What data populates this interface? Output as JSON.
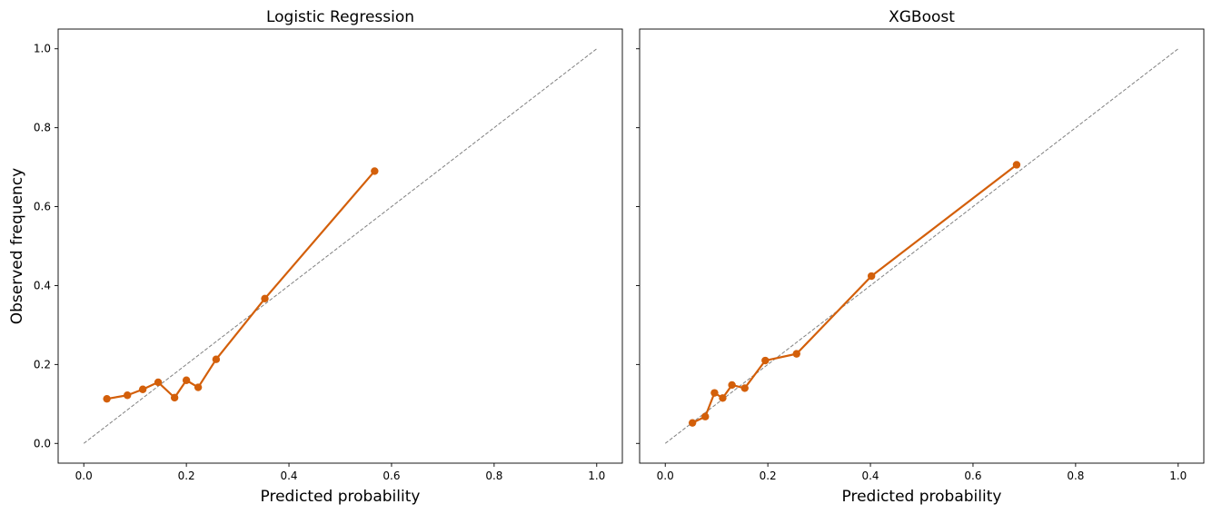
{
  "figure": {
    "shared_ylabel": "Observed frequency"
  },
  "chart_data": [
    {
      "type": "line",
      "title": "Logistic Regression",
      "xlabel": "Predicted probability",
      "ylabel": "Observed frequency",
      "xlim": [
        -0.05,
        1.05
      ],
      "ylim": [
        -0.05,
        1.05
      ],
      "xticks": [
        "0.0",
        "0.2",
        "0.4",
        "0.6",
        "0.8",
        "1.0"
      ],
      "yticks": [
        "0.0",
        "0.2",
        "0.4",
        "0.6",
        "0.8",
        "1.0"
      ],
      "grid": false,
      "reference_line": {
        "x": [
          0,
          1
        ],
        "y": [
          0,
          1
        ],
        "style": "dashed",
        "color": "#808080"
      },
      "series": [
        {
          "color": "#d35f0a",
          "marker": "circle",
          "x": [
            0.045,
            0.085,
            0.115,
            0.145,
            0.177,
            0.2,
            0.223,
            0.258,
            0.353,
            0.567
          ],
          "y": [
            0.113,
            0.122,
            0.137,
            0.155,
            0.116,
            0.16,
            0.142,
            0.213,
            0.367,
            0.69
          ]
        }
      ]
    },
    {
      "type": "line",
      "title": "XGBoost",
      "xlabel": "Predicted probability",
      "ylabel": "",
      "xlim": [
        -0.05,
        1.05
      ],
      "ylim": [
        -0.05,
        1.05
      ],
      "xticks": [
        "0.0",
        "0.2",
        "0.4",
        "0.6",
        "0.8",
        "1.0"
      ],
      "yticks": [],
      "grid": false,
      "reference_line": {
        "x": [
          0,
          1
        ],
        "y": [
          0,
          1
        ],
        "style": "dashed",
        "color": "#808080"
      },
      "series": [
        {
          "color": "#d35f0a",
          "marker": "circle",
          "x": [
            0.053,
            0.078,
            0.096,
            0.112,
            0.13,
            0.155,
            0.195,
            0.256,
            0.402,
            0.685
          ],
          "y": [
            0.052,
            0.068,
            0.128,
            0.115,
            0.148,
            0.14,
            0.21,
            0.227,
            0.424,
            0.706
          ]
        }
      ]
    }
  ]
}
